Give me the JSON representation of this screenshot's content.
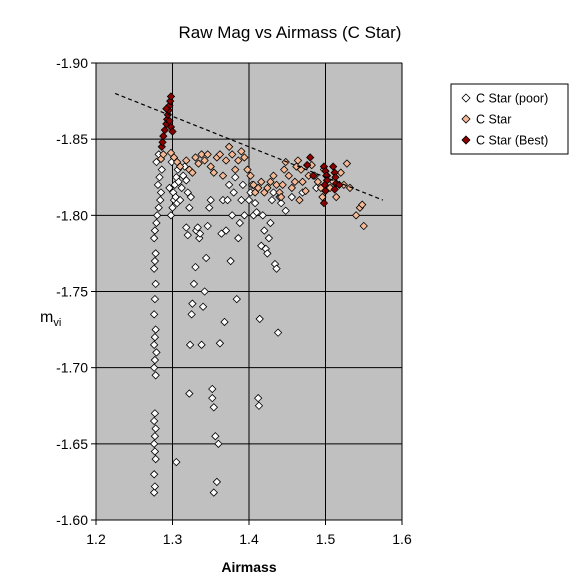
{
  "chart_data": {
    "type": "scatter",
    "title": "Raw Mag vs Airmass (C Star)",
    "xlabel": "Airmass",
    "ylabel": "m",
    "ylabel_sub": "vi",
    "xlim": [
      1.2,
      1.6
    ],
    "ylim": [
      -1.6,
      -1.9
    ],
    "y_inverted": true,
    "x_ticks": [
      "1.2",
      "1.3",
      "1.4",
      "1.5",
      "1.6"
    ],
    "y_ticks": [
      "-1.90",
      "-1.85",
      "-1.80",
      "-1.75",
      "-1.70",
      "-1.65",
      "-1.60"
    ],
    "grid": true,
    "plot_background": "#c0c0c0",
    "legend_position": "right",
    "trendline": {
      "from": [
        1.225,
        -1.88
      ],
      "to": [
        1.575,
        -1.81
      ],
      "style": "dashed"
    },
    "series": [
      {
        "name": "C Star (poor)",
        "marker": "diamond",
        "fill": "#ffffff",
        "points": [
          [
            1.276,
            -1.618
          ],
          [
            1.277,
            -1.622
          ],
          [
            1.276,
            -1.63
          ],
          [
            1.278,
            -1.64
          ],
          [
            1.277,
            -1.645
          ],
          [
            1.276,
            -1.65
          ],
          [
            1.277,
            -1.655
          ],
          [
            1.278,
            -1.66
          ],
          [
            1.276,
            -1.665
          ],
          [
            1.277,
            -1.67
          ],
          [
            1.278,
            -1.695
          ],
          [
            1.276,
            -1.7
          ],
          [
            1.277,
            -1.705
          ],
          [
            1.279,
            -1.71
          ],
          [
            1.276,
            -1.715
          ],
          [
            1.277,
            -1.72
          ],
          [
            1.278,
            -1.725
          ],
          [
            1.276,
            -1.735
          ],
          [
            1.277,
            -1.745
          ],
          [
            1.278,
            -1.755
          ],
          [
            1.276,
            -1.765
          ],
          [
            1.277,
            -1.77
          ],
          [
            1.278,
            -1.775
          ],
          [
            1.276,
            -1.785
          ],
          [
            1.277,
            -1.79
          ],
          [
            1.279,
            -1.795
          ],
          [
            1.28,
            -1.8
          ],
          [
            1.282,
            -1.805
          ],
          [
            1.284,
            -1.81
          ],
          [
            1.285,
            -1.815
          ],
          [
            1.281,
            -1.82
          ],
          [
            1.283,
            -1.825
          ],
          [
            1.286,
            -1.83
          ],
          [
            1.279,
            -1.835
          ],
          [
            1.282,
            -1.84
          ],
          [
            1.298,
            -1.8
          ],
          [
            1.3,
            -1.805
          ],
          [
            1.302,
            -1.81
          ],
          [
            1.301,
            -1.815
          ],
          [
            1.303,
            -1.82
          ],
          [
            1.305,
            -1.825
          ],
          [
            1.307,
            -1.83
          ],
          [
            1.299,
            -1.835
          ],
          [
            1.304,
            -1.812
          ],
          [
            1.306,
            -1.808
          ],
          [
            1.296,
            -1.818
          ],
          [
            1.308,
            -1.822
          ],
          [
            1.31,
            -1.81
          ],
          [
            1.312,
            -1.818
          ],
          [
            1.314,
            -1.826
          ],
          [
            1.316,
            -1.832
          ],
          [
            1.318,
            -1.823
          ],
          [
            1.32,
            -1.815
          ],
          [
            1.322,
            -1.805
          ],
          [
            1.324,
            -1.812
          ],
          [
            1.318,
            -1.792
          ],
          [
            1.32,
            -1.787
          ],
          [
            1.305,
            -1.638
          ],
          [
            1.322,
            -1.683
          ],
          [
            1.323,
            -1.715
          ],
          [
            1.325,
            -1.735
          ],
          [
            1.326,
            -1.742
          ],
          [
            1.328,
            -1.755
          ],
          [
            1.33,
            -1.766
          ],
          [
            1.331,
            -1.79
          ],
          [
            1.333,
            -1.792
          ],
          [
            1.335,
            -1.785
          ],
          [
            1.336,
            -1.788
          ],
          [
            1.338,
            -1.715
          ],
          [
            1.34,
            -1.74
          ],
          [
            1.342,
            -1.75
          ],
          [
            1.344,
            -1.772
          ],
          [
            1.346,
            -1.793
          ],
          [
            1.348,
            -1.805
          ],
          [
            1.35,
            -1.81
          ],
          [
            1.352,
            -1.68
          ],
          [
            1.354,
            -1.674
          ],
          [
            1.352,
            -1.686
          ],
          [
            1.354,
            -1.618
          ],
          [
            1.356,
            -1.655
          ],
          [
            1.358,
            -1.625
          ],
          [
            1.36,
            -1.65
          ],
          [
            1.362,
            -1.716
          ],
          [
            1.364,
            -1.788
          ],
          [
            1.366,
            -1.81
          ],
          [
            1.368,
            -1.73
          ],
          [
            1.37,
            -1.79
          ],
          [
            1.372,
            -1.81
          ],
          [
            1.374,
            -1.82
          ],
          [
            1.376,
            -1.77
          ],
          [
            1.378,
            -1.8
          ],
          [
            1.38,
            -1.815
          ],
          [
            1.382,
            -1.825
          ],
          [
            1.384,
            -1.745
          ],
          [
            1.386,
            -1.785
          ],
          [
            1.388,
            -1.795
          ],
          [
            1.39,
            -1.81
          ],
          [
            1.392,
            -1.82
          ],
          [
            1.394,
            -1.8
          ],
          [
            1.4,
            -1.81
          ],
          [
            1.402,
            -1.815
          ],
          [
            1.404,
            -1.82
          ],
          [
            1.406,
            -1.8
          ],
          [
            1.408,
            -1.808
          ],
          [
            1.41,
            -1.802
          ],
          [
            1.412,
            -1.68
          ],
          [
            1.413,
            -1.675
          ],
          [
            1.414,
            -1.732
          ],
          [
            1.416,
            -1.78
          ],
          [
            1.418,
            -1.8
          ],
          [
            1.42,
            -1.79
          ],
          [
            1.422,
            -1.778
          ],
          [
            1.424,
            -1.775
          ],
          [
            1.426,
            -1.785
          ],
          [
            1.428,
            -1.795
          ],
          [
            1.43,
            -1.81
          ],
          [
            1.432,
            -1.815
          ],
          [
            1.434,
            -1.768
          ],
          [
            1.436,
            -1.765
          ],
          [
            1.438,
            -1.723
          ],
          [
            1.44,
            -1.812
          ],
          [
            1.442,
            -1.808
          ],
          [
            1.448,
            -1.803
          ],
          [
            1.456,
            -1.812
          ],
          [
            1.47,
            -1.815
          ],
          [
            1.488,
            -1.818
          ]
        ]
      },
      {
        "name": "C Star",
        "marker": "diamond",
        "fill": "#f5b895",
        "points": [
          [
            1.285,
            -1.837
          ],
          [
            1.288,
            -1.84
          ],
          [
            1.298,
            -1.841
          ],
          [
            1.302,
            -1.838
          ],
          [
            1.306,
            -1.835
          ],
          [
            1.31,
            -1.832
          ],
          [
            1.318,
            -1.836
          ],
          [
            1.322,
            -1.83
          ],
          [
            1.326,
            -1.828
          ],
          [
            1.33,
            -1.838
          ],
          [
            1.334,
            -1.834
          ],
          [
            1.338,
            -1.84
          ],
          [
            1.342,
            -1.836
          ],
          [
            1.346,
            -1.84
          ],
          [
            1.35,
            -1.832
          ],
          [
            1.354,
            -1.828
          ],
          [
            1.358,
            -1.838
          ],
          [
            1.362,
            -1.84
          ],
          [
            1.366,
            -1.826
          ],
          [
            1.37,
            -1.836
          ],
          [
            1.374,
            -1.845
          ],
          [
            1.378,
            -1.84
          ],
          [
            1.382,
            -1.83
          ],
          [
            1.386,
            -1.836
          ],
          [
            1.39,
            -1.842
          ],
          [
            1.394,
            -1.838
          ],
          [
            1.398,
            -1.83
          ],
          [
            1.402,
            -1.826
          ],
          [
            1.406,
            -1.82
          ],
          [
            1.408,
            -1.815
          ],
          [
            1.412,
            -1.818
          ],
          [
            1.416,
            -1.822
          ],
          [
            1.42,
            -1.815
          ],
          [
            1.424,
            -1.818
          ],
          [
            1.428,
            -1.822
          ],
          [
            1.432,
            -1.826
          ],
          [
            1.436,
            -1.82
          ],
          [
            1.44,
            -1.815
          ],
          [
            1.444,
            -1.82
          ],
          [
            1.446,
            -1.83
          ],
          [
            1.448,
            -1.835
          ],
          [
            1.452,
            -1.826
          ],
          [
            1.456,
            -1.818
          ],
          [
            1.46,
            -1.822
          ],
          [
            1.462,
            -1.832
          ],
          [
            1.464,
            -1.836
          ],
          [
            1.468,
            -1.83
          ],
          [
            1.47,
            -1.822
          ],
          [
            1.474,
            -1.816
          ],
          [
            1.478,
            -1.826
          ],
          [
            1.482,
            -1.833
          ],
          [
            1.486,
            -1.826
          ],
          [
            1.49,
            -1.822
          ],
          [
            1.494,
            -1.818
          ],
          [
            1.498,
            -1.83
          ],
          [
            1.502,
            -1.826
          ],
          [
            1.506,
            -1.818
          ],
          [
            1.51,
            -1.822
          ],
          [
            1.514,
            -1.812
          ],
          [
            1.52,
            -1.828
          ],
          [
            1.524,
            -1.82
          ],
          [
            1.528,
            -1.834
          ],
          [
            1.532,
            -1.818
          ],
          [
            1.54,
            -1.8
          ],
          [
            1.545,
            -1.805
          ],
          [
            1.548,
            -1.807
          ],
          [
            1.55,
            -1.793
          ],
          [
            1.442,
            -1.812
          ],
          [
            1.466,
            -1.81
          ],
          [
            1.496,
            -1.812
          ]
        ]
      },
      {
        "name": "C Star (Best)",
        "marker": "diamond",
        "fill": "#8b0000",
        "points": [
          [
            1.286,
            -1.845
          ],
          [
            1.287,
            -1.848
          ],
          [
            1.288,
            -1.852
          ],
          [
            1.29,
            -1.856
          ],
          [
            1.292,
            -1.86
          ],
          [
            1.293,
            -1.863
          ],
          [
            1.294,
            -1.866
          ],
          [
            1.295,
            -1.869
          ],
          [
            1.296,
            -1.872
          ],
          [
            1.297,
            -1.875
          ],
          [
            1.298,
            -1.878
          ],
          [
            1.292,
            -1.87
          ],
          [
            1.296,
            -1.862
          ],
          [
            1.298,
            -1.858
          ],
          [
            1.3,
            -1.855
          ],
          [
            1.476,
            -1.833
          ],
          [
            1.48,
            -1.838
          ],
          [
            1.484,
            -1.826
          ],
          [
            1.498,
            -1.832
          ],
          [
            1.5,
            -1.829
          ],
          [
            1.501,
            -1.826
          ],
          [
            1.502,
            -1.823
          ],
          [
            1.499,
            -1.82
          ],
          [
            1.5,
            -1.816
          ],
          [
            1.498,
            -1.808
          ],
          [
            1.51,
            -1.832
          ],
          [
            1.512,
            -1.828
          ],
          [
            1.513,
            -1.825
          ],
          [
            1.514,
            -1.821
          ],
          [
            1.512,
            -1.817
          ],
          [
            1.518,
            -1.82
          ]
        ]
      }
    ]
  }
}
